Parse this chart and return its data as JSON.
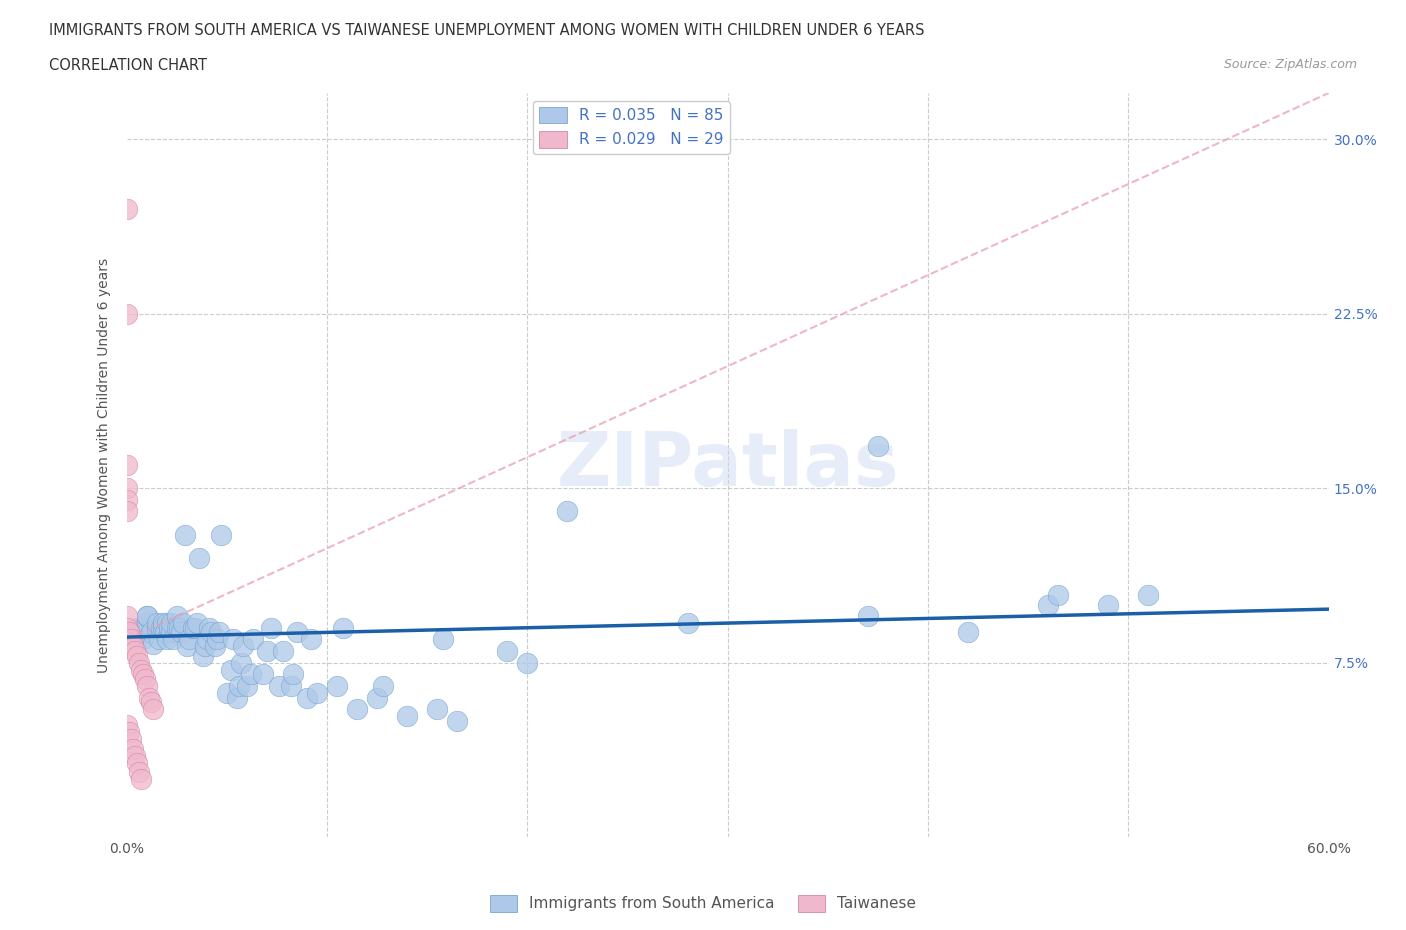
{
  "title_line1": "IMMIGRANTS FROM SOUTH AMERICA VS TAIWANESE UNEMPLOYMENT AMONG WOMEN WITH CHILDREN UNDER 6 YEARS",
  "title_line2": "CORRELATION CHART",
  "source": "Source: ZipAtlas.com",
  "ylabel": "Unemployment Among Women with Children Under 6 years",
  "xlim": [
    0.0,
    0.6
  ],
  "ylim": [
    0.0,
    0.32
  ],
  "xticks": [
    0.0,
    0.1,
    0.2,
    0.3,
    0.4,
    0.5,
    0.6
  ],
  "yticks": [
    0.0,
    0.075,
    0.15,
    0.225,
    0.3
  ],
  "yticklabels_right": [
    "",
    "7.5%",
    "15.0%",
    "22.5%",
    "30.0%"
  ],
  "watermark": "ZIPatlas",
  "blue_color": "#adc8e8",
  "pink_color": "#f0b8cc",
  "trend_blue_color": "#1a5fa8",
  "trend_pink_color": "#e08090",
  "blue_scatter": {
    "x": [
      0.005,
      0.008,
      0.01,
      0.01,
      0.01,
      0.01,
      0.012,
      0.013,
      0.015,
      0.015,
      0.016,
      0.017,
      0.018,
      0.018,
      0.019,
      0.02,
      0.02,
      0.021,
      0.022,
      0.022,
      0.023,
      0.025,
      0.025,
      0.026,
      0.027,
      0.028,
      0.029,
      0.03,
      0.031,
      0.033,
      0.034,
      0.035,
      0.036,
      0.038,
      0.039,
      0.04,
      0.041,
      0.042,
      0.044,
      0.045,
      0.046,
      0.047,
      0.05,
      0.052,
      0.053,
      0.055,
      0.056,
      0.057,
      0.058,
      0.06,
      0.062,
      0.063,
      0.068,
      0.07,
      0.072,
      0.076,
      0.078,
      0.082,
      0.083,
      0.085,
      0.09,
      0.092,
      0.095,
      0.105,
      0.108,
      0.115,
      0.125,
      0.128,
      0.14,
      0.155,
      0.158,
      0.165,
      0.19,
      0.2,
      0.22,
      0.28,
      0.37,
      0.375,
      0.42,
      0.46,
      0.465,
      0.49,
      0.51
    ],
    "y": [
      0.09,
      0.085,
      0.088,
      0.092,
      0.095,
      0.095,
      0.088,
      0.083,
      0.09,
      0.092,
      0.085,
      0.09,
      0.09,
      0.092,
      0.088,
      0.085,
      0.092,
      0.09,
      0.088,
      0.092,
      0.085,
      0.09,
      0.095,
      0.09,
      0.088,
      0.092,
      0.13,
      0.082,
      0.085,
      0.09,
      0.09,
      0.092,
      0.12,
      0.078,
      0.082,
      0.085,
      0.09,
      0.088,
      0.082,
      0.085,
      0.088,
      0.13,
      0.062,
      0.072,
      0.085,
      0.06,
      0.065,
      0.075,
      0.082,
      0.065,
      0.07,
      0.085,
      0.07,
      0.08,
      0.09,
      0.065,
      0.08,
      0.065,
      0.07,
      0.088,
      0.06,
      0.085,
      0.062,
      0.065,
      0.09,
      0.055,
      0.06,
      0.065,
      0.052,
      0.055,
      0.085,
      0.05,
      0.08,
      0.075,
      0.14,
      0.092,
      0.095,
      0.168,
      0.088,
      0.1,
      0.104,
      0.1,
      0.104
    ]
  },
  "pink_scatter": {
    "x": [
      0.0,
      0.0,
      0.0,
      0.0,
      0.0,
      0.0,
      0.0,
      0.0,
      0.001,
      0.002,
      0.003,
      0.004,
      0.005,
      0.006,
      0.007,
      0.008,
      0.009,
      0.01,
      0.011,
      0.012,
      0.013,
      0.0,
      0.001,
      0.002,
      0.003,
      0.004,
      0.005,
      0.006,
      0.007
    ],
    "y": [
      0.27,
      0.225,
      0.16,
      0.15,
      0.145,
      0.14,
      0.095,
      0.09,
      0.088,
      0.085,
      0.082,
      0.08,
      0.078,
      0.075,
      0.072,
      0.07,
      0.068,
      0.065,
      0.06,
      0.058,
      0.055,
      0.048,
      0.045,
      0.042,
      0.038,
      0.035,
      0.032,
      0.028,
      0.025
    ]
  },
  "pink_trend_x": [
    0.0,
    0.6
  ],
  "pink_trend_y": [
    0.085,
    0.32
  ],
  "blue_trend_x": [
    0.0,
    0.6
  ],
  "blue_trend_y": [
    0.086,
    0.098
  ]
}
